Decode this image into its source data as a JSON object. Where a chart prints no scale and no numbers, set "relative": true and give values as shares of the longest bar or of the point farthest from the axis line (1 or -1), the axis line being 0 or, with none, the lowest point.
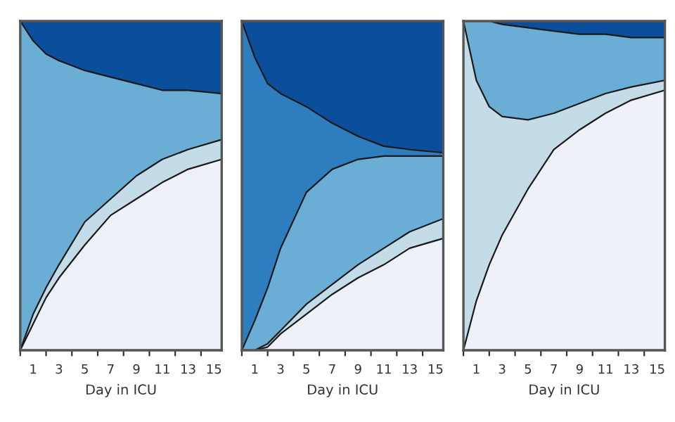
{
  "chart_data": [
    {
      "type": "area",
      "stacked": true,
      "relative": true,
      "xlabel": "Day in ICU",
      "x": [
        0,
        1,
        2,
        3,
        5,
        7,
        9,
        11,
        13,
        15.6
      ],
      "xlim": [
        0,
        15.6
      ],
      "xticks": [
        {
          "value": 0,
          "label": null
        },
        {
          "value": 1,
          "label": "1"
        },
        {
          "value": 2,
          "label": null
        },
        {
          "value": 3,
          "label": "3"
        },
        {
          "value": 4,
          "label": null
        },
        {
          "value": 5,
          "label": "5"
        },
        {
          "value": 6,
          "label": null
        },
        {
          "value": 7,
          "label": "7"
        },
        {
          "value": 8,
          "label": null
        },
        {
          "value": 9,
          "label": "9"
        },
        {
          "value": 10,
          "label": null
        },
        {
          "value": 11,
          "label": "11"
        },
        {
          "value": 12,
          "label": null
        },
        {
          "value": 13,
          "label": "13"
        },
        {
          "value": 14,
          "label": null
        },
        {
          "value": 15,
          "label": "15"
        }
      ],
      "series": [
        {
          "color": "#eef1f8",
          "values": [
            0,
            0.08,
            0.16,
            0.22,
            0.32,
            0.41,
            0.46,
            0.51,
            0.55,
            0.58
          ]
        },
        {
          "color": "#c4dbe8",
          "values": [
            0,
            0.03,
            0.03,
            0.04,
            0.07,
            0.05,
            0.07,
            0.07,
            0.06,
            0.06
          ]
        },
        {
          "color": "#6aaed6",
          "values": [
            1,
            0.83,
            0.71,
            0.62,
            0.46,
            0.37,
            0.28,
            0.21,
            0.18,
            0.14
          ]
        },
        {
          "color": "#0b4f9c",
          "values": [
            0,
            0.06,
            0.1,
            0.12,
            0.15,
            0.17,
            0.19,
            0.21,
            0.21,
            0.22
          ]
        }
      ]
    },
    {
      "type": "area",
      "stacked": true,
      "relative": true,
      "xlabel": "Day in ICU",
      "x": [
        0,
        1,
        2,
        3,
        5,
        7,
        9,
        11,
        13,
        15.6
      ],
      "xlim": [
        0,
        15.6
      ],
      "xticks": [
        {
          "value": 0,
          "label": null
        },
        {
          "value": 1,
          "label": "1"
        },
        {
          "value": 2,
          "label": null
        },
        {
          "value": 3,
          "label": "3"
        },
        {
          "value": 4,
          "label": null
        },
        {
          "value": 5,
          "label": "5"
        },
        {
          "value": 6,
          "label": null
        },
        {
          "value": 7,
          "label": "7"
        },
        {
          "value": 8,
          "label": null
        },
        {
          "value": 9,
          "label": "9"
        },
        {
          "value": 10,
          "label": null
        },
        {
          "value": 11,
          "label": "11"
        },
        {
          "value": 12,
          "label": null
        },
        {
          "value": 13,
          "label": "13"
        },
        {
          "value": 14,
          "label": null
        },
        {
          "value": 15,
          "label": "15"
        }
      ],
      "series": [
        {
          "color": "#eef1f8",
          "values": [
            0,
            0,
            0.01,
            0.05,
            0.11,
            0.17,
            0.22,
            0.26,
            0.31,
            0.34
          ]
        },
        {
          "color": "#c4dbe8",
          "values": [
            0,
            0,
            0.01,
            0.01,
            0.03,
            0.03,
            0.04,
            0.05,
            0.05,
            0.06
          ]
        },
        {
          "color": "#6aaed6",
          "values": [
            0,
            0.09,
            0.17,
            0.25,
            0.34,
            0.35,
            0.32,
            0.28,
            0.23,
            0.19
          ]
        },
        {
          "color": "#2e7ebf",
          "values": [
            1,
            0.8,
            0.62,
            0.47,
            0.26,
            0.14,
            0.07,
            0.03,
            0.02,
            0.01
          ]
        },
        {
          "color": "#0b4f9c",
          "values": [
            0,
            0.11,
            0.19,
            0.22,
            0.26,
            0.31,
            0.35,
            0.38,
            0.39,
            0.4
          ]
        }
      ]
    },
    {
      "type": "area",
      "stacked": true,
      "relative": true,
      "xlabel": "Day in ICU",
      "x": [
        0,
        1,
        2,
        3,
        5,
        7,
        9,
        11,
        13,
        15.6
      ],
      "xlim": [
        0,
        15.6
      ],
      "xticks": [
        {
          "value": 0,
          "label": null
        },
        {
          "value": 1,
          "label": "1"
        },
        {
          "value": 2,
          "label": null
        },
        {
          "value": 3,
          "label": "3"
        },
        {
          "value": 4,
          "label": null
        },
        {
          "value": 5,
          "label": "5"
        },
        {
          "value": 6,
          "label": null
        },
        {
          "value": 7,
          "label": "7"
        },
        {
          "value": 8,
          "label": null
        },
        {
          "value": 9,
          "label": "9"
        },
        {
          "value": 10,
          "label": null
        },
        {
          "value": 11,
          "label": "11"
        },
        {
          "value": 12,
          "label": null
        },
        {
          "value": 13,
          "label": "13"
        },
        {
          "value": 14,
          "label": null
        },
        {
          "value": 15,
          "label": "15"
        }
      ],
      "series": [
        {
          "color": "#eef1f8",
          "values": [
            0,
            0.15,
            0.26,
            0.35,
            0.49,
            0.61,
            0.67,
            0.72,
            0.76,
            0.79
          ]
        },
        {
          "color": "#c4dbe8",
          "values": [
            1,
            0.67,
            0.48,
            0.36,
            0.21,
            0.11,
            0.08,
            0.06,
            0.04,
            0.03
          ]
        },
        {
          "color": "#6aaed6",
          "values": [
            0,
            0.18,
            0.26,
            0.28,
            0.28,
            0.25,
            0.21,
            0.18,
            0.15,
            0.13
          ]
        },
        {
          "color": "#0b4f9c",
          "values": [
            0,
            0,
            0,
            0.01,
            0.02,
            0.03,
            0.04,
            0.04,
            0.05,
            0.05
          ]
        }
      ]
    }
  ]
}
